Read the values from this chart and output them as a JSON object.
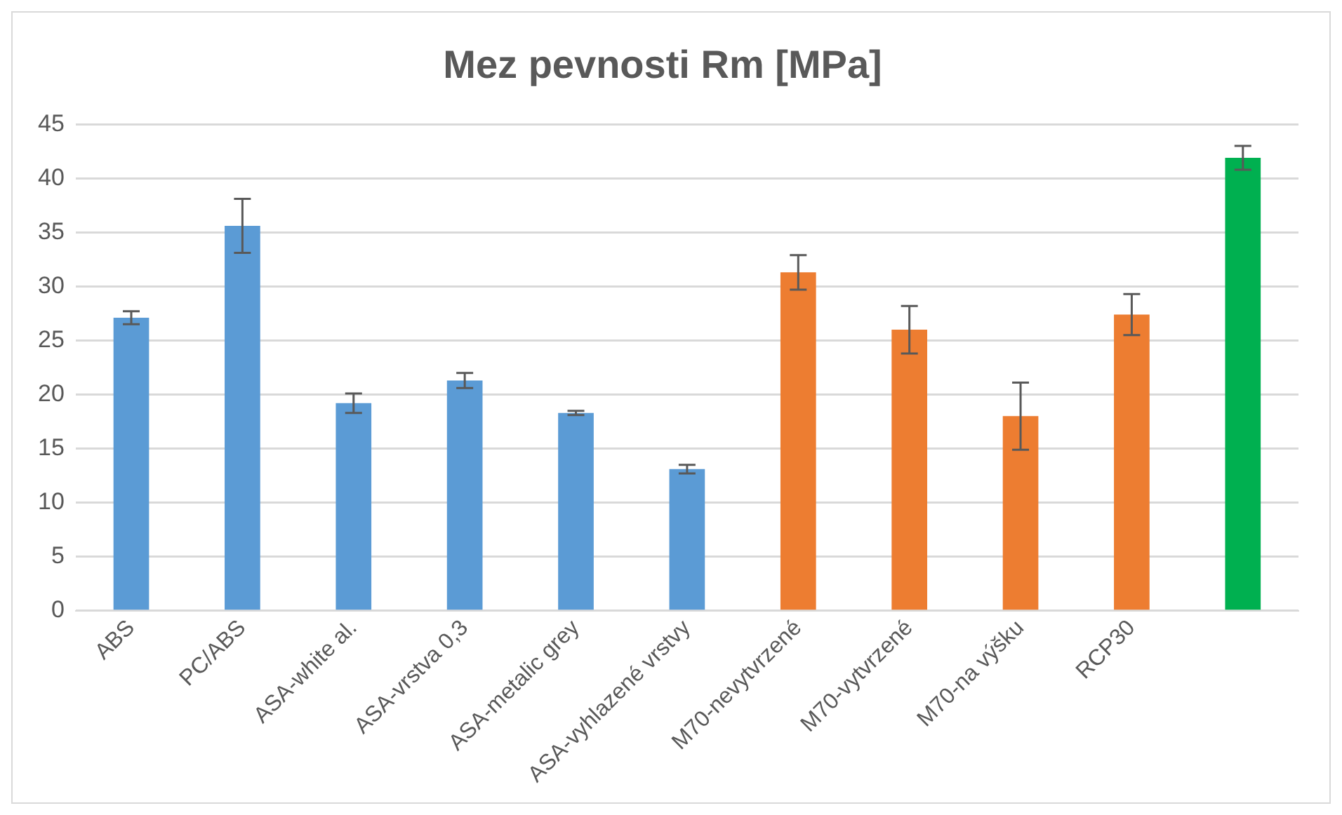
{
  "chart_data": {
    "type": "bar",
    "title": "Mez pevnosti Rm [MPa]",
    "categories": [
      "ABS",
      "PC/ABS",
      "ASA-white al.",
      "ASA-vrstva 0,3",
      "ASA-metalic grey",
      "ASA-vyhlazené vrstvy",
      "M70-nevytvrzené",
      "M70-vytvrzené",
      "M70-na výšku",
      "RCP30",
      null
    ],
    "values": [
      27.1,
      35.6,
      19.2,
      21.3,
      18.3,
      13.1,
      31.3,
      26.0,
      18.0,
      27.4,
      41.9
    ],
    "errors": [
      0.6,
      2.5,
      0.9,
      0.7,
      0.2,
      0.4,
      1.6,
      2.2,
      3.1,
      1.9,
      1.1
    ],
    "colors": [
      "#5b9bd5",
      "#5b9bd5",
      "#5b9bd5",
      "#5b9bd5",
      "#5b9bd5",
      "#5b9bd5",
      "#ed7d31",
      "#ed7d31",
      "#ed7d31",
      "#ed7d31",
      "#00b050"
    ],
    "ylim": [
      0,
      45
    ],
    "yticks": [
      0,
      5,
      10,
      15,
      20,
      25,
      30,
      35,
      40,
      45
    ],
    "grid": "y",
    "legend": false
  }
}
